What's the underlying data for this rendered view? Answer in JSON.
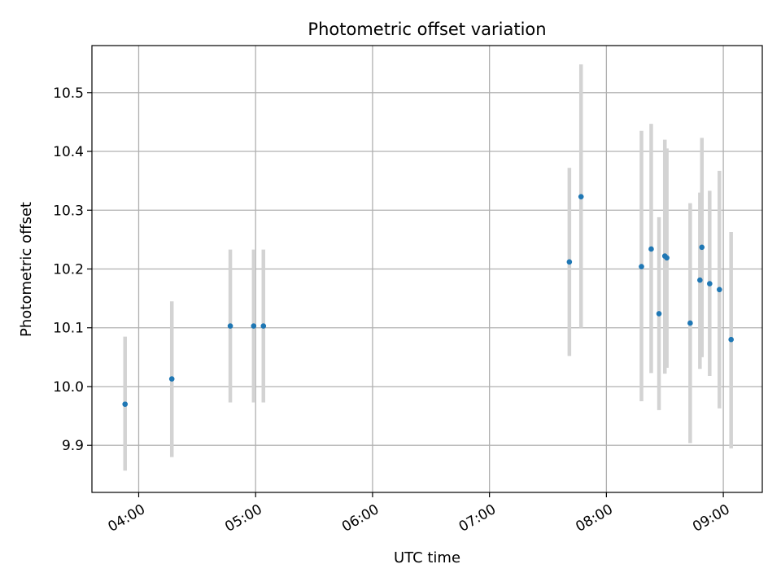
{
  "chart_data": {
    "type": "scatter",
    "title": "Photometric offset variation",
    "xlabel": "UTC time",
    "ylabel": "Photometric offset",
    "x_axis": {
      "kind": "time",
      "range": [
        "03:36",
        "09:20"
      ],
      "ticks": [
        "04:00",
        "05:00",
        "06:00",
        "07:00",
        "08:00",
        "09:00"
      ]
    },
    "y_axis": {
      "range": [
        9.82,
        10.58
      ],
      "ticks": [
        9.9,
        10.0,
        10.1,
        10.2,
        10.3,
        10.4,
        10.5
      ],
      "tick_labels": [
        "9.9",
        "10.0",
        "10.1",
        "10.2",
        "10.3",
        "10.4",
        "10.5"
      ]
    },
    "grid": true,
    "colors": {
      "point": "#1f77b4",
      "error_bar": "#d3d3d3",
      "grid": "#b0b0b0"
    },
    "points": [
      {
        "t": "03:53",
        "y": 9.97,
        "low": 9.857,
        "high": 10.085
      },
      {
        "t": "04:17",
        "y": 10.013,
        "low": 9.88,
        "high": 10.145
      },
      {
        "t": "04:47",
        "y": 10.103,
        "low": 9.973,
        "high": 10.233
      },
      {
        "t": "04:59",
        "y": 10.103,
        "low": 9.973,
        "high": 10.233
      },
      {
        "t": "05:04",
        "y": 10.103,
        "low": 9.973,
        "high": 10.233
      },
      {
        "t": "07:41",
        "y": 10.212,
        "low": 10.052,
        "high": 10.372
      },
      {
        "t": "07:47",
        "y": 10.323,
        "low": 10.1,
        "high": 10.548
      },
      {
        "t": "08:18",
        "y": 10.204,
        "low": 9.975,
        "high": 10.435
      },
      {
        "t": "08:23",
        "y": 10.234,
        "low": 10.023,
        "high": 10.447
      },
      {
        "t": "08:27",
        "y": 10.124,
        "low": 9.96,
        "high": 10.288
      },
      {
        "t": "08:30",
        "y": 10.222,
        "low": 10.022,
        "high": 10.42
      },
      {
        "t": "08:31",
        "y": 10.219,
        "low": 10.032,
        "high": 10.405
      },
      {
        "t": "08:43",
        "y": 10.108,
        "low": 9.904,
        "high": 10.312
      },
      {
        "t": "08:48",
        "y": 10.181,
        "low": 10.03,
        "high": 10.33
      },
      {
        "t": "08:49",
        "y": 10.237,
        "low": 10.05,
        "high": 10.423
      },
      {
        "t": "08:53",
        "y": 10.175,
        "low": 10.018,
        "high": 10.333
      },
      {
        "t": "08:58",
        "y": 10.165,
        "low": 9.963,
        "high": 10.367
      },
      {
        "t": "09:04",
        "y": 10.08,
        "low": 9.895,
        "high": 10.263
      }
    ]
  }
}
